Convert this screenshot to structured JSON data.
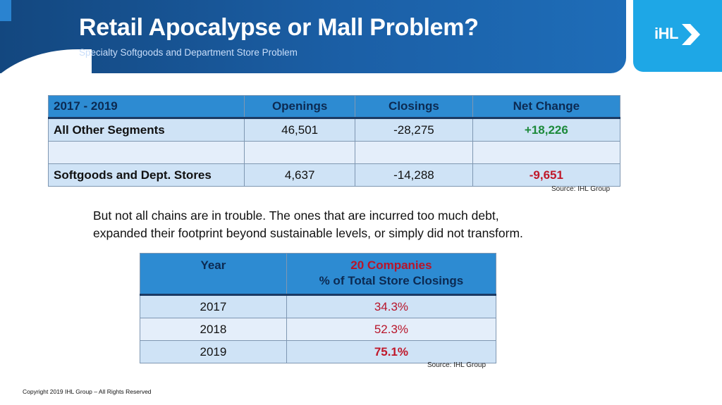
{
  "header": {
    "title": "Retail Apocalypse or Mall Problem?",
    "subtitle": "Specialty Softgoods and Department Store Problem",
    "logo_text": "iHL"
  },
  "table1": {
    "headers": [
      "2017 - 2019",
      "Openings",
      "Closings",
      "Net Change"
    ],
    "rows": [
      {
        "segment": "All Other Segments",
        "openings": "46,501",
        "closings": "-28,275",
        "net": "+18,226"
      },
      {
        "segment": "",
        "openings": "",
        "closings": "",
        "net": ""
      },
      {
        "segment": "Softgoods and Dept. Stores",
        "openings": "4,637",
        "closings": "-14,288",
        "net": "-9,651"
      }
    ],
    "source": "Source: IHL Group"
  },
  "paragraph": {
    "line1": "But not all chains are in trouble. The ones that are incurred too much debt,",
    "line2": "expanded their footprint beyond sustainable levels, or simply did not transform."
  },
  "table2": {
    "header_year": "Year",
    "header_pct_line1": "20 Companies",
    "header_pct_line2": "% of Total Store Closings",
    "rows": [
      {
        "year": "2017",
        "pct": "34.3%"
      },
      {
        "year": "2018",
        "pct": "52.3%"
      },
      {
        "year": "2019",
        "pct": "75.1%"
      }
    ],
    "source": "Source: IHL Group"
  },
  "footer": {
    "copyright": "Copyright 2019 IHL Group – All Rights Reserved"
  },
  "colors": {
    "header_blue": "#1b5fa6",
    "logo_blue": "#1ea7e6",
    "table_header": "#2d8bd2",
    "positive": "#1d8a3b",
    "negative": "#c0182a"
  }
}
